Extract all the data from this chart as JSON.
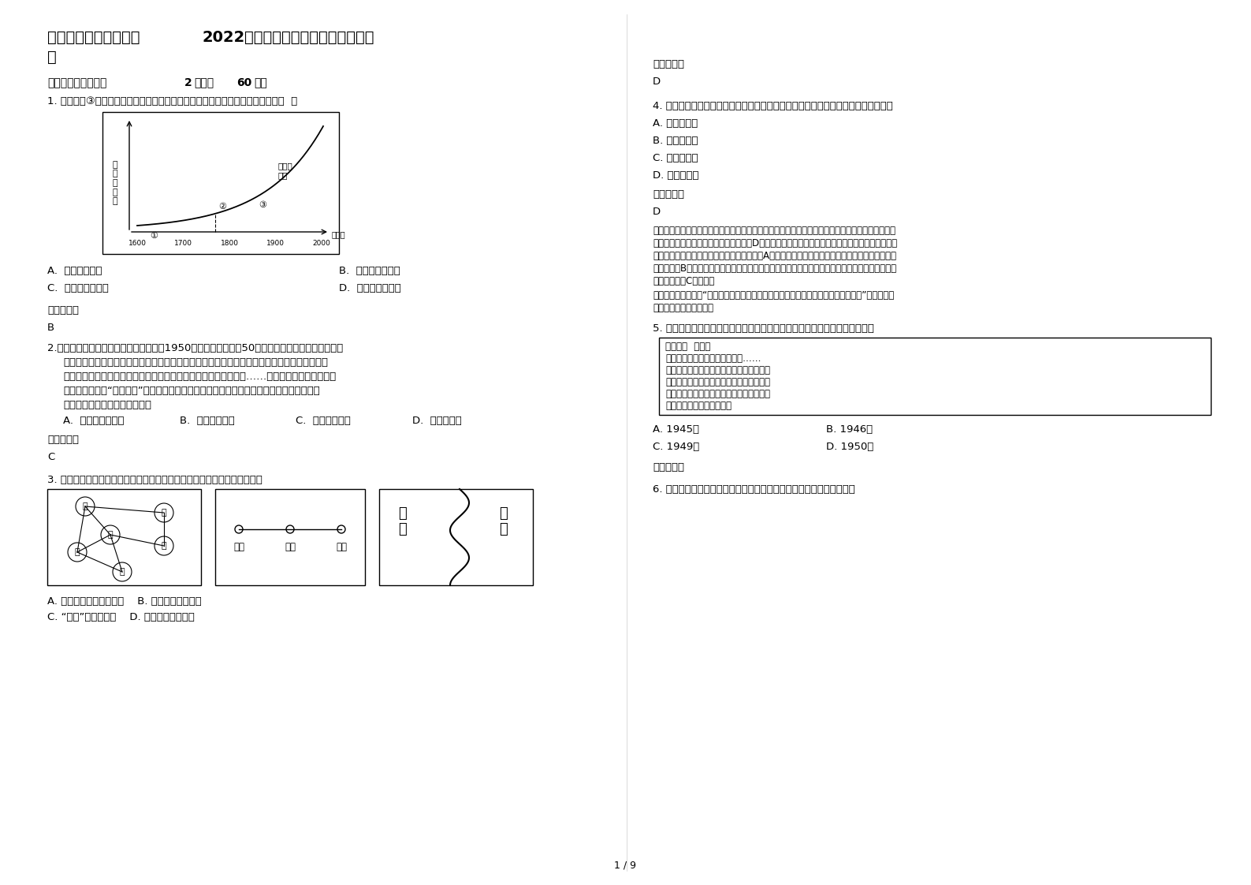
{
  "bg_color": "#ffffff",
  "page_num": "1 / 9",
  "title_part1": "江西省赣州市江口中学",
  "title_bold": "2022",
  "title_part2": "年高二历史下学期期末试卷含解",
  "title_part3": "析",
  "section1": "一、选择题（每小题",
  "section1_bold": "2",
  "section1_mid": "分，共",
  "section1_bold2": "60",
  "section1_end": "分）",
  "q1": "1. 与下图中③对应的历史时期，社会生产力与工业生产发展迅速，其主要原因是（  ）",
  "q1_A": "A.  蕲汽机的应用",
  "q1_B": "B.  电力的广泛应用",
  "q1_C": "C.  电子技术的应用",
  "q1_D": "D.  网络技术的应用",
  "q1_ans_label": "参考答案：",
  "q1_ans": "B",
  "q2": "2.《生死疲劳》是莫言的代表作，叙述了1950年以后中国农村近50年的变迁，小说以土地改革时被",
  "q2_line2": "枪毉的一个地主为主人公，他认为自己虽有财富，并无罪恶，因此在阴间里他为自己喚婈。他不",
  "q2_line3": "断地经历着六道轮回，一世为人、一世为马、一世为牛、一世为驴……每次转世为不同的动物。",
  "q2_line4": "小说正是通过是“各种动物”的眼睛（生死轮回的艺术图像），来观察和体味农村的变革。由",
  "q2_line5": "此，与该作品风格最为接近的是",
  "q2_A": "A.  《巴黎圣母院》",
  "q2_B": "B.  《悲惨世界》",
  "q2_C": "C.  《堂吉诃德》",
  "q2_D": "D.  《西风颂》",
  "q2_ans_label": "参考答案：",
  "q2_ans": "C",
  "q3": "3. 下列三幅图分别表示了不同时期的世界形势。它们所揭示的共同问题是：",
  "q3_A": "A. 帝国主义国家间的争夺    B. 法西斯势力的猜獽",
  "q3_B": "C. “冷战”局面的形成    D. 大国结盟威胁和平",
  "fig1_nodes_names": [
    "英",
    "俣",
    "德",
    "奥",
    "法",
    "意"
  ],
  "fig2_cities": [
    "柏林",
    "罗马",
    "东京"
  ],
  "fig3_left": "北约",
  "fig3_right": "华约",
  "graph_ylabel": "社\n会\n生\n产\n力",
  "graph_curve_label": "工业生\n产量",
  "graph_year_unit": "（年）",
  "graph_years": [
    "1600",
    "1700",
    "1800",
    "1900",
    "2000"
  ],
  "right_ref_label": "参考答案：",
  "right_ans_D": "D",
  "q4": "4. 中国古代最稀少、最精美的东西往往会被皇家垃断，宫廷收藏的手工艺品主要来自",
  "q4_A": "A. 民营手工业",
  "q4_B": "B. 家庭手工业",
  "q4_C": "C. 附属国贡品",
  "q4_D": "D. 官营手工业",
  "q4_ans_label": "参考答案：",
  "q4_ans": "D",
  "q4_exp1": "结合所学可知，中国古代官营手工业的制作工艺水平代表了当时手工业的最高技术水平，因此宫廷收",
  "q4_exp2": "藏的手工艺品主要来自于官营手工业，故D项正确；古代民间私营手工业规模往往比较小，无法满足",
  "q4_exp3": "宫廷的需求，明朝以后才取得很大的发展，故A项错误；家庭手工业的产品主要是缴纳赋税和满足自",
  "q4_exp4": "己消费，故B项错误；古代的手工业处于领先地位，外国进口的又比较少，因此不可能是宫廷收藏的",
  "q4_exp5": "主要来源，故C项错误。",
  "q4_tip1": "点睛：抓住关键信息“最稀少、最精美的东西往往会被皇家垃断，宫廷收藏的手工艺品”，结合官营",
  "q4_tip2": "手工业的特点分析解答。",
  "q5": "5. 右图是我军缴获的国民党新六军下级军官李浤生日记。该日记最有可能写于",
  "q5_diary1": "一月九日  星期三",
  "q5_diary2": "唉！今天的中国寄生虫太多了，……",
  "q5_diary3": "国事一天一天的好转了，国家的一切将决定",
  "q5_diary4": "在明（十）日之政治协商会议，此会如果成",
  "q5_diary5": "功，实四亿五千万苍生之幸福，万一不幸则",
  "q5_diary6": "启患无为，吾人忧目以待。",
  "q5_A": "A. 1945年",
  "q5_B": "B. 1946年",
  "q5_C": "C. 1949年",
  "q5_D": "D. 1950年",
  "q5_ans_label": "参考答案：",
  "q6": "6. 一战中各种新式武器纷纷亮相战场。英国首次使用右图中的武器是在"
}
